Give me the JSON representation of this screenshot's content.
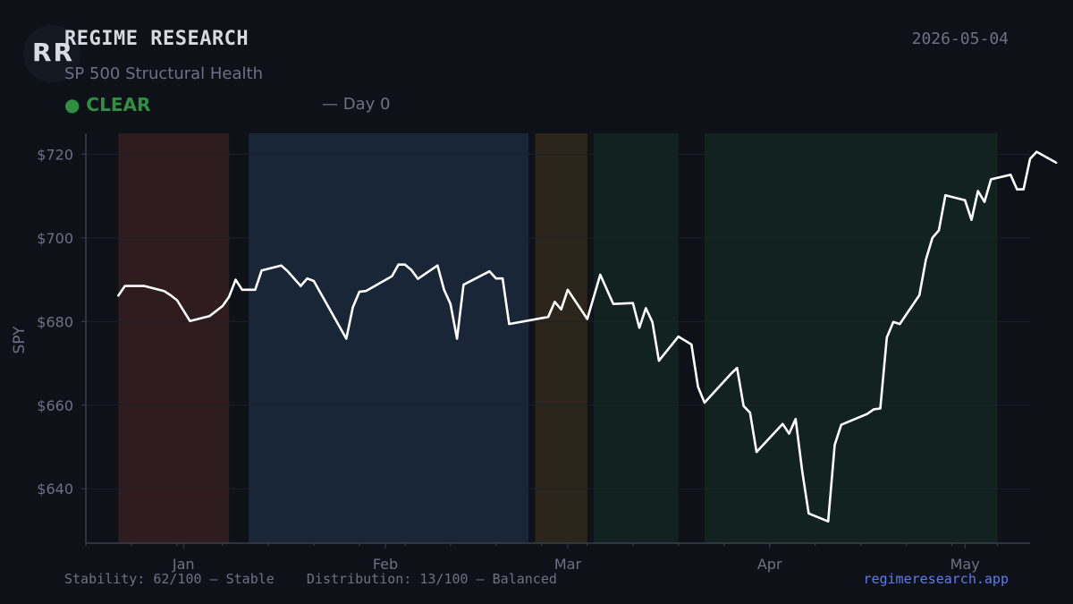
{
  "header": {
    "logo_text": "RR",
    "brand": "REGIME RESEARCH",
    "subtitle": "SP 500 Structural Health",
    "status_dot": "●",
    "status_label": "CLEAR",
    "day_label": "— Day 0",
    "date": "2026-05-04"
  },
  "footer": {
    "metrics": "Stability: 62/100 — Stable    Distribution: 13/100 — Balanced",
    "site": "regimeresearch.app"
  },
  "colors": {
    "background": "#0e1118",
    "line": "#ffffff",
    "status_clear": "#2e9040",
    "link": "#5b7cf0"
  },
  "chart_data": {
    "type": "line",
    "title": "",
    "xlabel": "",
    "ylabel": "SPY",
    "ylim": [
      627,
      725
    ],
    "xlim": [
      "2025-12-17",
      "2026-05-11"
    ],
    "yticks": [
      640,
      660,
      680,
      700,
      720
    ],
    "ytick_labels": [
      "$640",
      "$660",
      "$680",
      "$700",
      "$720"
    ],
    "xticks": [
      {
        "label": "Jan",
        "date": "2026-01-01"
      },
      {
        "label": "Feb",
        "date": "2026-02-01"
      },
      {
        "label": "Mar",
        "date": "2026-03-01"
      },
      {
        "label": "Apr",
        "date": "2026-04-01"
      },
      {
        "label": "May",
        "date": "2026-05-01"
      }
    ],
    "grid": true,
    "regimes": [
      {
        "start": "2025-12-22",
        "end": "2026-01-08",
        "color": "#2f1c1f"
      },
      {
        "start": "2026-01-11",
        "end": "2026-02-23",
        "color": "#182638"
      },
      {
        "start": "2026-02-24",
        "end": "2026-03-04",
        "color": "#2b251b"
      },
      {
        "start": "2026-03-05",
        "end": "2026-03-18",
        "color": "#122220"
      },
      {
        "start": "2026-03-22",
        "end": "2026-05-06",
        "color": "#12221f"
      }
    ],
    "series": [
      {
        "points": [
          [
            "2025-12-22",
            686.2
          ],
          [
            "2025-12-23",
            688.5
          ],
          [
            "2025-12-26",
            688.5
          ],
          [
            "2025-12-29",
            687.3
          ],
          [
            "2025-12-30",
            686.3
          ],
          [
            "2025-12-31",
            685.1
          ],
          [
            "2026-01-02",
            680.1
          ],
          [
            "2026-01-05",
            681.3
          ],
          [
            "2026-01-07",
            683.7
          ],
          [
            "2026-01-08",
            685.9
          ],
          [
            "2026-01-09",
            690.0
          ],
          [
            "2026-01-10",
            687.6
          ],
          [
            "2026-01-12",
            687.6
          ],
          [
            "2026-01-13",
            692.2
          ],
          [
            "2026-01-16",
            693.4
          ],
          [
            "2026-01-17",
            692.0
          ],
          [
            "2026-01-19",
            688.5
          ],
          [
            "2026-01-20",
            690.3
          ],
          [
            "2026-01-21",
            689.7
          ],
          [
            "2026-01-26",
            675.9
          ],
          [
            "2026-01-27",
            683.4
          ],
          [
            "2026-01-28",
            687.1
          ],
          [
            "2026-01-29",
            687.3
          ],
          [
            "2026-02-02",
            690.8
          ],
          [
            "2026-02-03",
            693.6
          ],
          [
            "2026-02-04",
            693.6
          ],
          [
            "2026-02-05",
            692.3
          ],
          [
            "2026-02-06",
            690.2
          ],
          [
            "2026-02-09",
            693.4
          ],
          [
            "2026-02-10",
            687.6
          ],
          [
            "2026-02-11",
            684.2
          ],
          [
            "2026-02-12",
            675.9
          ],
          [
            "2026-02-13",
            688.8
          ],
          [
            "2026-02-17",
            692.0
          ],
          [
            "2026-02-18",
            690.3
          ],
          [
            "2026-02-19",
            690.3
          ],
          [
            "2026-02-20",
            679.4
          ],
          [
            "2026-02-26",
            681.1
          ],
          [
            "2026-02-27",
            684.7
          ],
          [
            "2026-02-28",
            682.9
          ],
          [
            "2026-03-01",
            687.6
          ],
          [
            "2026-03-04",
            680.6
          ],
          [
            "2026-03-06",
            691.2
          ],
          [
            "2026-03-08",
            684.2
          ],
          [
            "2026-03-11",
            684.4
          ],
          [
            "2026-03-12",
            678.5
          ],
          [
            "2026-03-13",
            683.2
          ],
          [
            "2026-03-14",
            679.9
          ],
          [
            "2026-03-15",
            670.6
          ],
          [
            "2026-03-18",
            676.4
          ],
          [
            "2026-03-20",
            674.5
          ],
          [
            "2026-03-21",
            664.4
          ],
          [
            "2026-03-22",
            660.6
          ],
          [
            "2026-03-26",
            667.4
          ],
          [
            "2026-03-27",
            668.9
          ],
          [
            "2026-03-28",
            659.8
          ],
          [
            "2026-03-29",
            658.2
          ],
          [
            "2026-03-30",
            648.8
          ],
          [
            "2026-04-03",
            655.5
          ],
          [
            "2026-04-04",
            653.2
          ],
          [
            "2026-04-05",
            656.7
          ],
          [
            "2026-04-06",
            644.3
          ],
          [
            "2026-04-07",
            634.1
          ],
          [
            "2026-04-10",
            632.2
          ],
          [
            "2026-04-11",
            650.5
          ],
          [
            "2026-04-12",
            655.3
          ],
          [
            "2026-04-16",
            657.9
          ],
          [
            "2026-04-17",
            659.0
          ],
          [
            "2026-04-18",
            659.2
          ],
          [
            "2026-04-19",
            676.2
          ],
          [
            "2026-04-20",
            679.9
          ],
          [
            "2026-04-21",
            679.4
          ],
          [
            "2026-04-24",
            686.3
          ],
          [
            "2026-04-25",
            694.8
          ],
          [
            "2026-04-26",
            700.0
          ],
          [
            "2026-04-27",
            701.8
          ],
          [
            "2026-04-28",
            710.2
          ],
          [
            "2026-05-01",
            709.0
          ],
          [
            "2026-05-02",
            704.3
          ],
          [
            "2026-05-03",
            711.2
          ],
          [
            "2026-05-04",
            708.6
          ],
          [
            "2026-05-05",
            714.0
          ],
          [
            "2026-05-08",
            715.1
          ],
          [
            "2026-05-09",
            711.6
          ],
          [
            "2026-05-10",
            711.6
          ],
          [
            "2026-05-11",
            718.9
          ],
          [
            "2026-05-12",
            720.6
          ],
          [
            "2026-05-15",
            718.0
          ]
        ]
      }
    ]
  }
}
